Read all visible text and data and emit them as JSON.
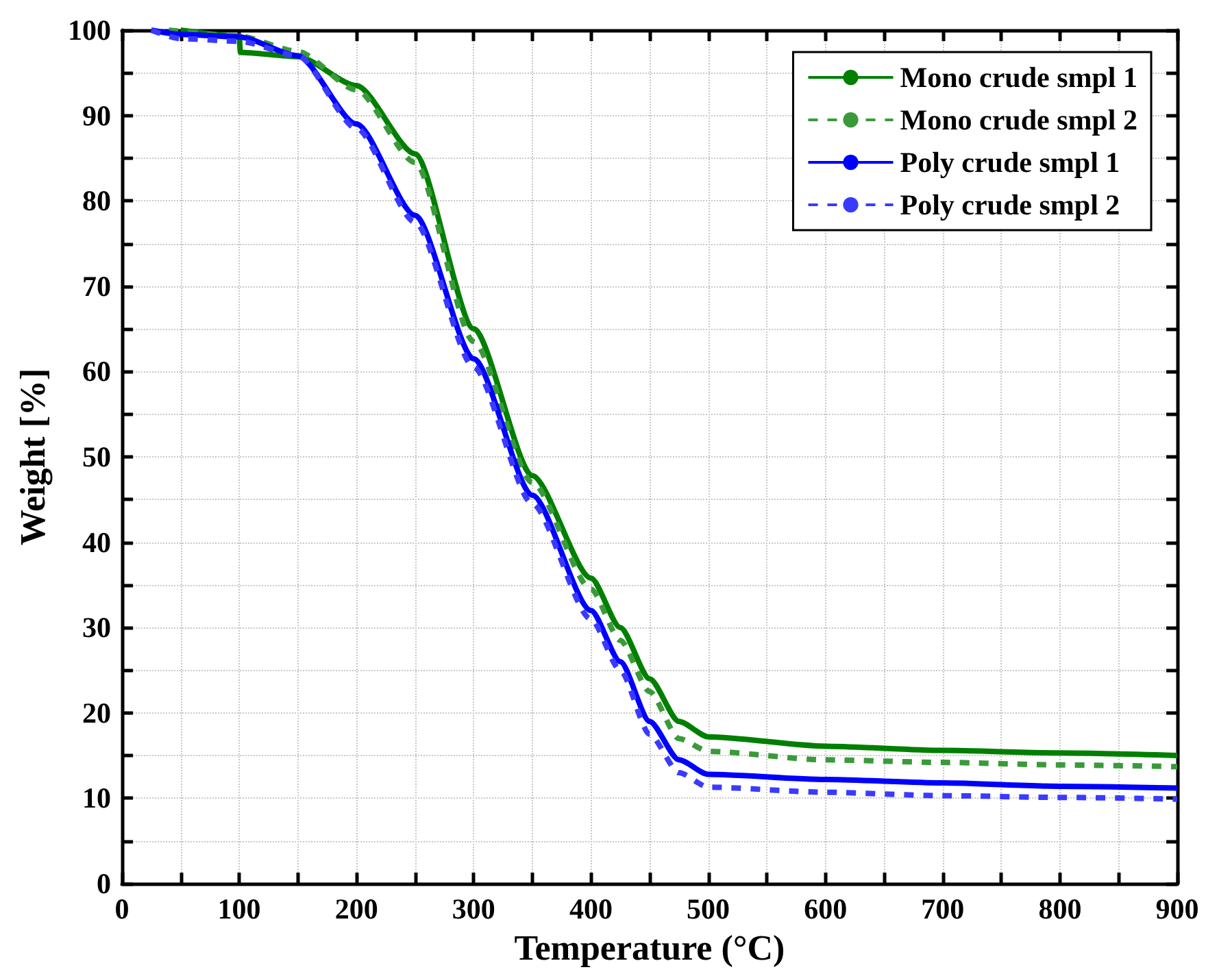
{
  "chart_data": {
    "type": "line",
    "xlabel": "Temperature (°C)",
    "ylabel": "Weight [%]",
    "xlim": [
      0,
      900
    ],
    "ylim": [
      0,
      100
    ],
    "xticks": [
      0,
      {
        "value": 50,
        "label": null
      },
      100,
      {
        "value": 150,
        "label": null
      },
      200,
      {
        "value": 250,
        "label": null
      },
      300,
      {
        "value": 350,
        "label": null
      },
      400,
      {
        "value": 450,
        "label": null
      },
      500,
      {
        "value": 550,
        "label": null
      },
      600,
      {
        "value": 650,
        "label": null
      },
      700,
      {
        "value": 750,
        "label": null
      },
      800,
      {
        "value": 850,
        "label": null
      },
      900
    ],
    "yticks": [
      0,
      {
        "value": 5,
        "label": null
      },
      10,
      {
        "value": 15,
        "label": null
      },
      20,
      {
        "value": 25,
        "label": null
      },
      30,
      {
        "value": 35,
        "label": null
      },
      40,
      {
        "value": 45,
        "label": null
      },
      50,
      {
        "value": 55,
        "label": null
      },
      60,
      {
        "value": 65,
        "label": null
      },
      70,
      {
        "value": 75,
        "label": null
      },
      80,
      {
        "value": 85,
        "label": null
      },
      90,
      {
        "value": 95,
        "label": null
      },
      100
    ],
    "grid": true,
    "legend": "top right",
    "marker": "none",
    "series": [
      {
        "name": "Mono crude smpl 1",
        "color": "#007f00",
        "line_style": "solid",
        "x": [
          50,
          100,
          101,
          150,
          200,
          250,
          300,
          350,
          400,
          425,
          450,
          475,
          500,
          600,
          700,
          800,
          900
        ],
        "values": [
          100,
          99.3,
          97.4,
          96.9,
          93.5,
          85.5,
          65,
          47.8,
          35.8,
          30,
          24,
          19,
          17.2,
          16.1,
          15.6,
          15.3,
          15.0
        ]
      },
      {
        "name": "Mono crude smpl 2",
        "color": "#3a9a3a",
        "line_style": "dashed",
        "x": [
          40,
          100,
          150,
          200,
          250,
          300,
          350,
          400,
          425,
          450,
          475,
          500,
          600,
          700,
          800,
          900
        ],
        "values": [
          100,
          99.3,
          97.5,
          93,
          84.5,
          63.5,
          47,
          34.5,
          28.5,
          22.5,
          17,
          15.5,
          14.5,
          14.2,
          13.9,
          13.7
        ]
      },
      {
        "name": "Poly crude smpl 1",
        "color": "#0000ff",
        "line_style": "solid",
        "x": [
          25,
          50,
          100,
          150,
          200,
          250,
          300,
          350,
          400,
          425,
          450,
          475,
          500,
          600,
          700,
          800,
          900
        ],
        "values": [
          100,
          99.5,
          99.2,
          97,
          89,
          78.3,
          61.5,
          45.5,
          32,
          26,
          19,
          14.5,
          12.8,
          12.2,
          11.8,
          11.4,
          11.2
        ]
      },
      {
        "name": "Poly crude smpl 2",
        "color": "#3a3aff",
        "line_style": "dashed",
        "x": [
          25,
          50,
          100,
          150,
          200,
          250,
          300,
          350,
          400,
          425,
          450,
          475,
          500,
          600,
          700,
          800,
          900
        ],
        "values": [
          100,
          99,
          98.7,
          97,
          88.5,
          77.5,
          60.5,
          44.5,
          31,
          25,
          17.5,
          13,
          11.3,
          10.7,
          10.3,
          10.1,
          9.9
        ]
      }
    ]
  }
}
